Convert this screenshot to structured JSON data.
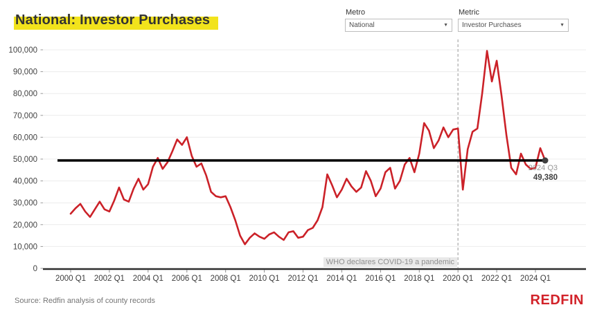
{
  "title": "National: Investor Purchases",
  "controls": {
    "metro_label": "Metro",
    "metro_value": "National",
    "metric_label": "Metric",
    "metric_value": "Investor Purchases"
  },
  "annotation": {
    "pandemic": "WHO declares COVID-19 a pandemic"
  },
  "endpoint": {
    "label": "2024 Q3",
    "value": "49,380"
  },
  "footer": {
    "source": "Source: Redfin analysis of county records",
    "logo": "REDFIN"
  },
  "colors": {
    "line": "#CB2128",
    "reference": "#000000",
    "grid": "#ECECEC",
    "axis": "#2E2E2E",
    "highlight": "#F2E31C",
    "logo_red": "#D2232A"
  },
  "chart_data": {
    "type": "line",
    "title": "National: Investor Purchases",
    "xlabel": "",
    "ylabel": "",
    "ylim": [
      0,
      100000
    ],
    "grid": true,
    "y_ticks": [
      0,
      10000,
      20000,
      30000,
      40000,
      50000,
      60000,
      70000,
      80000,
      90000,
      100000
    ],
    "x_tick_labels": [
      "2000 Q1",
      "2002 Q1",
      "2004 Q1",
      "2006 Q1",
      "2008 Q1",
      "2010 Q1",
      "2012 Q1",
      "2014 Q1",
      "2016 Q1",
      "2018 Q1",
      "2020 Q1",
      "2022 Q1",
      "2024 Q1"
    ],
    "quarters_start": "2000 Q1",
    "quarters_end": "2024 Q3",
    "reference_line": 49380,
    "event_quarter_index": 80,
    "event_label": "WHO declares COVID-19 a pandemic",
    "values": [
      25000,
      27500,
      29500,
      26000,
      23500,
      27000,
      30500,
      27000,
      26000,
      31000,
      37000,
      31500,
      30500,
      36500,
      41000,
      36000,
      38500,
      46500,
      50500,
      45500,
      48500,
      53500,
      59000,
      56500,
      60000,
      51500,
      46500,
      48000,
      42500,
      35000,
      33000,
      32500,
      33000,
      28000,
      22000,
      15000,
      11000,
      14000,
      16000,
      14500,
      13500,
      15500,
      16500,
      14500,
      13000,
      16500,
      17000,
      14000,
      14500,
      17500,
      18500,
      22000,
      28000,
      43000,
      38000,
      32500,
      36000,
      41000,
      37500,
      35000,
      37000,
      44500,
      40000,
      33000,
      36500,
      44000,
      46000,
      36500,
      40000,
      47500,
      50500,
      44000,
      52500,
      66500,
      63000,
      55000,
      58500,
      64500,
      60000,
      63500,
      64000,
      36000,
      54500,
      62500,
      64000,
      80000,
      99500,
      85500,
      95000,
      79000,
      61000,
      46000,
      43000,
      52500,
      47500,
      45500,
      46000,
      55000,
      49380
    ]
  }
}
